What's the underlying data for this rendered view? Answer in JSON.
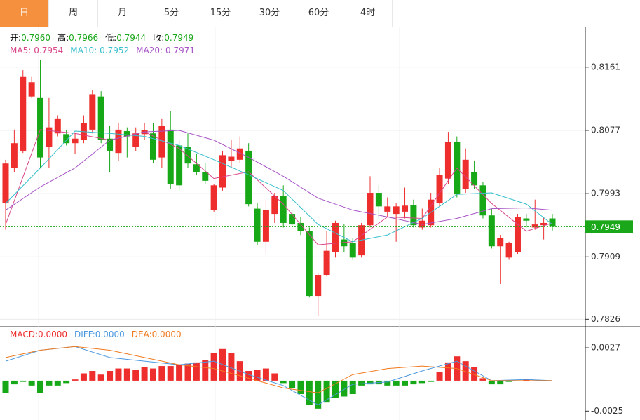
{
  "tabs": [
    "日",
    "周",
    "月",
    "5分",
    "15分",
    "30分",
    "60分",
    "4时"
  ],
  "active_tab": 0,
  "chart_data": {
    "type": "candlestick",
    "up_color": "#ee2d2d",
    "down_color": "#17a817",
    "ylim": [
      0.7817,
      0.8213
    ],
    "yticks": [
      0.8161,
      0.8077,
      0.7993,
      0.7909,
      0.7826
    ],
    "grid": true,
    "info_labels": [
      "开",
      "高",
      "低",
      "收"
    ],
    "info_value_labels": [
      "0.7960",
      "0.7966",
      "0.7944",
      "0.7949"
    ],
    "open": [
      0.798,
      0.8027,
      0.805,
      0.8122,
      0.812,
      0.8055,
      0.8073,
      0.8072,
      0.806,
      0.8064,
      0.8078,
      0.8122,
      0.8066,
      0.8047,
      0.8076,
      0.8055,
      0.8072,
      0.8073,
      0.8041,
      0.8078,
      0.8057,
      0.8055,
      0.8032,
      0.8022,
      0.7971,
      0.8001,
      0.8036,
      0.8038,
      0.805,
      0.7973,
      0.7929,
      0.7966,
      0.799,
      0.7966,
      0.7954,
      0.7943,
      0.7857,
      0.7885,
      0.7915,
      0.7932,
      0.7927,
      0.7911,
      0.7951,
      0.7994,
      0.7969,
      0.7966,
      0.7969,
      0.7978,
      0.7948,
      0.7951,
      0.798,
      0.8013,
      0.8062,
      0.7999,
      0.8022,
      0.8004,
      0.7964,
      0.7923,
      0.7908,
      0.7915,
      0.796,
      0.7948,
      0.7951,
      0.796
    ],
    "high": [
      0.8038,
      0.8078,
      0.8157,
      0.8148,
      0.8171,
      0.812,
      0.8097,
      0.8078,
      0.8073,
      0.8097,
      0.8131,
      0.8129,
      0.8083,
      0.8087,
      0.8081,
      0.8081,
      0.8087,
      0.8087,
      0.8092,
      0.8103,
      0.8064,
      0.8073,
      0.8046,
      0.8034,
      0.8006,
      0.805,
      0.8064,
      0.8069,
      0.806,
      0.798,
      0.7985,
      0.7994,
      0.8004,
      0.7971,
      0.7962,
      0.7948,
      0.7887,
      0.7943,
      0.7957,
      0.7952,
      0.7934,
      0.7954,
      0.8016,
      0.8004,
      0.7988,
      0.798,
      0.8001,
      0.7985,
      0.7973,
      0.7994,
      0.8027,
      0.8075,
      0.8069,
      0.8053,
      0.8036,
      0.8008,
      0.7973,
      0.7938,
      0.7929,
      0.7966,
      0.7966,
      0.7985,
      0.7962,
      0.7966
    ],
    "low": [
      0.7945,
      0.8022,
      0.8047,
      0.812,
      0.8027,
      0.8027,
      0.8069,
      0.8057,
      0.8046,
      0.806,
      0.8073,
      0.806,
      0.8022,
      0.8036,
      0.8041,
      0.805,
      0.8064,
      0.8034,
      0.8027,
      0.7999,
      0.7997,
      0.8027,
      0.8018,
      0.8006,
      0.7969,
      0.7997,
      0.8027,
      0.8034,
      0.7976,
      0.7925,
      0.7913,
      0.7954,
      0.7948,
      0.7948,
      0.7938,
      0.7855,
      0.7831,
      0.7883,
      0.7908,
      0.7915,
      0.7905,
      0.7908,
      0.7948,
      0.796,
      0.7962,
      0.7929,
      0.796,
      0.7948,
      0.7945,
      0.7948,
      0.7976,
      0.8006,
      0.7988,
      0.7994,
      0.7999,
      0.796,
      0.792,
      0.7873,
      0.7905,
      0.7913,
      0.7948,
      0.7945,
      0.7932,
      0.7944
    ],
    "close": [
      0.8033,
      0.806,
      0.8148,
      0.8141,
      0.8041,
      0.8081,
      0.8092,
      0.806,
      0.8066,
      0.8087,
      0.8125,
      0.8064,
      0.805,
      0.8078,
      0.8069,
      0.8073,
      0.8077,
      0.8038,
      0.8083,
      0.8006,
      0.8004,
      0.8033,
      0.8022,
      0.801,
      0.8004,
      0.8044,
      0.8042,
      0.8053,
      0.7979,
      0.7929,
      0.7971,
      0.799,
      0.7954,
      0.7952,
      0.7943,
      0.7857,
      0.7885,
      0.7917,
      0.7954,
      0.7923,
      0.7908,
      0.7951,
      0.7994,
      0.7976,
      0.7976,
      0.7976,
      0.7977,
      0.7951,
      0.7957,
      0.7985,
      0.8018,
      0.8062,
      0.7992,
      0.8038,
      0.8004,
      0.7964,
      0.7923,
      0.7934,
      0.7927,
      0.7962,
      0.7957,
      0.7952,
      0.7954,
      0.7949
    ],
    "price_color": "#1aa81a",
    "ma": [
      {
        "name": "MA5",
        "color": "#d8458a",
        "x": [
          0,
          4,
          8,
          12,
          16,
          20,
          24,
          28,
          32,
          36,
          40,
          44,
          48,
          52,
          56,
          60,
          63
        ],
        "values": [
          0.7952,
          0.8078,
          0.8073,
          0.8064,
          0.8075,
          0.8053,
          0.8013,
          0.8022,
          0.7979,
          0.7925,
          0.7929,
          0.7962,
          0.796,
          0.8027,
          0.798,
          0.7943,
          0.7954
        ]
      },
      {
        "name": "MA10",
        "color": "#35bfcc",
        "x": [
          0,
          4,
          8,
          12,
          16,
          20,
          24,
          28,
          32,
          36,
          40,
          44,
          48,
          52,
          56,
          60,
          63
        ],
        "values": [
          0.798,
          0.8027,
          0.8076,
          0.8073,
          0.8069,
          0.8057,
          0.8038,
          0.8018,
          0.7997,
          0.7952,
          0.7929,
          0.7938,
          0.796,
          0.7992,
          0.7994,
          0.7979,
          0.7952
        ]
      },
      {
        "name": "MA20",
        "color": "#a653c6",
        "x": [
          0,
          4,
          8,
          12,
          16,
          20,
          24,
          28,
          32,
          36,
          40,
          44,
          48,
          52,
          56,
          60,
          63
        ],
        "values": [
          0.7971,
          0.8002,
          0.8027,
          0.8064,
          0.8075,
          0.8077,
          0.8064,
          0.8041,
          0.8016,
          0.7987,
          0.7971,
          0.7962,
          0.7952,
          0.796,
          0.7973,
          0.7974,
          0.7971
        ]
      }
    ],
    "macd": {
      "type": "bar",
      "name": "MACD",
      "value_label": "0.0000",
      "color": "#ee2d2d",
      "ylim": [
        -0.003,
        0.0042
      ],
      "yticks": [
        0.0027,
        -0.0025
      ],
      "values": [
        -0.001,
        -0.0003,
        -0.0001,
        -0.0004,
        -0.001,
        -0.0004,
        -0.0004,
        -0.0002,
        0.0001,
        0.0006,
        0.0008,
        0.0005,
        0.0008,
        0.001,
        0.001,
        0.0009,
        0.0011,
        0.001,
        0.0012,
        0.0012,
        0.0013,
        0.0014,
        0.0015,
        0.0017,
        0.0023,
        0.0026,
        0.0023,
        0.0016,
        0.0008,
        0.0009,
        0.001,
        0.0006,
        -0.0002,
        -0.0006,
        -0.0011,
        -0.002,
        -0.0023,
        -0.0018,
        -0.0014,
        -0.0013,
        -0.0011,
        -0.0004,
        -0.0003,
        -0.0003,
        -0.0004,
        -0.0004,
        -0.0004,
        -0.0003,
        -0.0002,
        -0.0001,
        0.0007,
        0.0015,
        0.002,
        0.0016,
        0.0011,
        0.0002,
        -0.0003,
        -0.0003,
        -0.0001,
        0,
        0.0001,
        0,
        0,
        0
      ],
      "lines": [
        {
          "name": "DIFF",
          "value_label": "0.0000",
          "color": "#4a98e0",
          "x": [
            0,
            4,
            8,
            12,
            16,
            20,
            24,
            28,
            32,
            36,
            40,
            44,
            48,
            52,
            56,
            60,
            63
          ],
          "values": [
            0.0016,
            0.0025,
            0.0028,
            0.0019,
            0.0016,
            0.0013,
            0.0016,
            0.0005,
            -0.0004,
            -0.002,
            -0.0003,
            -0.0001,
            0.0008,
            0.0016,
            0,
            0.0001,
            0
          ]
        },
        {
          "name": "DEA",
          "value_label": "0.0000",
          "color": "#f07a1e",
          "x": [
            0,
            4,
            8,
            12,
            16,
            20,
            24,
            28,
            32,
            36,
            40,
            44,
            48,
            52,
            56,
            60,
            63
          ],
          "values": [
            0.0019,
            0.0025,
            0.0028,
            0.0025,
            0.0019,
            0.0013,
            0.001,
            0.0002,
            -0.0006,
            -0.001,
            0.0005,
            0.001,
            0.0012,
            0.001,
            0,
            0,
            0
          ]
        }
      ]
    }
  }
}
